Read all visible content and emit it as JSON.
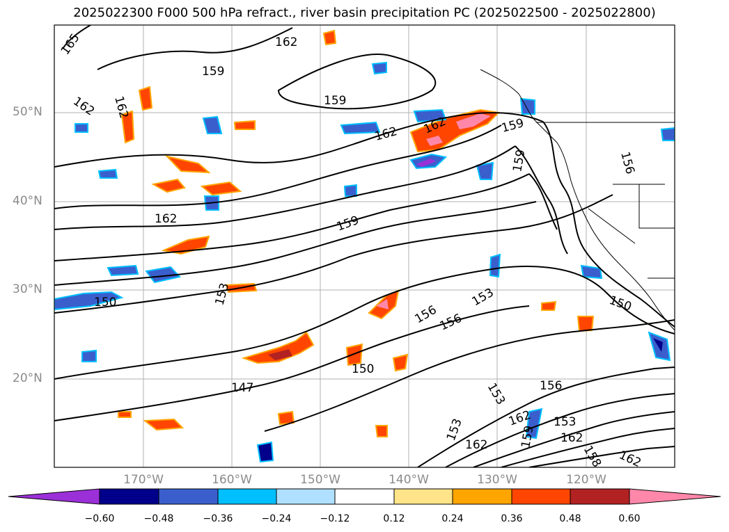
{
  "title": "2025022300 F000 500 hPa refract., river basin precipitation PC (2025022500 - 2025022800)",
  "lat_labels": [
    "50°N",
    "40°N",
    "30°N",
    "20°N"
  ],
  "lon_labels": [
    "170°W",
    "160°W",
    "150°W",
    "140°W",
    "130°W",
    "120°W"
  ],
  "contour_labels": [
    "165",
    "162",
    "162",
    "159",
    "162",
    "159",
    "162",
    "162",
    "159",
    "159",
    "156",
    "162",
    "159",
    "153",
    "150",
    "156",
    "156",
    "153",
    "150",
    "147",
    "150",
    "153",
    "156",
    "162",
    "153",
    "159",
    "162",
    "153",
    "162",
    "158",
    "162"
  ],
  "colorbar": {
    "tick_labels": [
      "−0.60",
      "−0.48",
      "−0.36",
      "−0.24",
      "−0.12",
      "0.12",
      "0.24",
      "0.36",
      "0.48",
      "0.60"
    ],
    "colors": [
      "#9b30d8",
      "#00008b",
      "#3a5fcd",
      "#00bfff",
      "#b0e0ff",
      "#ffffff",
      "#ffe48a",
      "#ffa500",
      "#ff4500",
      "#b22222",
      "#ff88aa"
    ]
  },
  "colors": {
    "axis_label": "#8a8a8a",
    "contour": "#000000",
    "grid": "#b0b0b0"
  }
}
